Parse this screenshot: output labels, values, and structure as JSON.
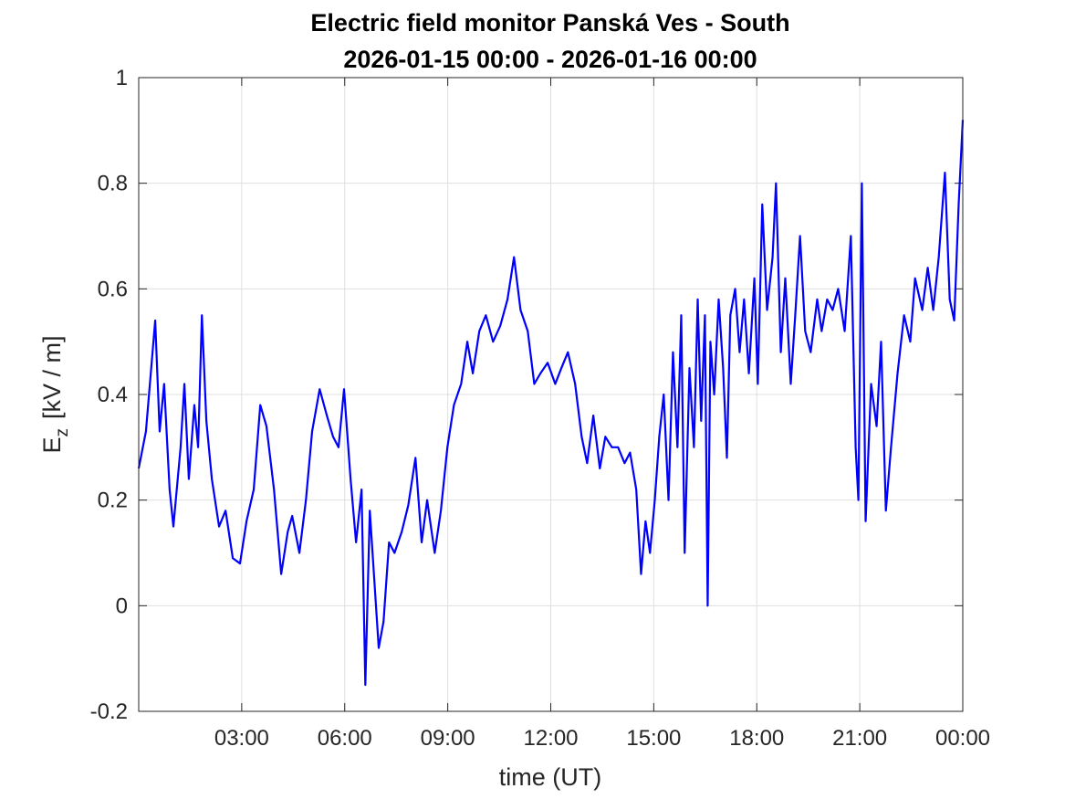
{
  "chart_data": {
    "type": "line",
    "title": "Electric field monitor Panská Ves - South",
    "subtitle": "2026-01-15 00:00 - 2026-01-16 00:00",
    "xlabel": "time (UT)",
    "ylabel": {
      "symbol": "E",
      "subscript": "z",
      "unit": "[kV / m]"
    },
    "xlim": [
      0,
      24
    ],
    "xticks": [
      {
        "value": 3,
        "label": "03:00"
      },
      {
        "value": 6,
        "label": "06:00"
      },
      {
        "value": 9,
        "label": "09:00"
      },
      {
        "value": 12,
        "label": "12:00"
      },
      {
        "value": 15,
        "label": "15:00"
      },
      {
        "value": 18,
        "label": "18:00"
      },
      {
        "value": 21,
        "label": "21:00"
      },
      {
        "value": 24,
        "label": "00:00"
      }
    ],
    "ylim": [
      -0.2,
      1
    ],
    "yticks": [
      -0.2,
      0,
      0.2,
      0.4,
      0.6,
      0.8,
      1
    ],
    "grid": true,
    "color": "#0000ff",
    "x": [
      0,
      0.21,
      0.48,
      0.61,
      0.74,
      0.9,
      1.01,
      1.22,
      1.33,
      1.46,
      1.62,
      1.73,
      1.84,
      1.97,
      2.13,
      2.34,
      2.53,
      2.74,
      2.95,
      3.14,
      3.35,
      3.54,
      3.72,
      3.94,
      4.15,
      4.34,
      4.47,
      4.68,
      4.87,
      5.05,
      5.27,
      5.48,
      5.66,
      5.82,
      5.98,
      6.17,
      6.33,
      6.49,
      6.6,
      6.73,
      6.86,
      6.99,
      7.13,
      7.29,
      7.45,
      7.66,
      7.85,
      8.06,
      8.24,
      8.4,
      8.62,
      8.8,
      8.99,
      9.18,
      9.39,
      9.57,
      9.73,
      9.92,
      10.11,
      10.32,
      10.53,
      10.74,
      10.93,
      11.12,
      11.33,
      11.52,
      11.7,
      11.91,
      12.13,
      12.31,
      12.5,
      12.71,
      12.9,
      13.06,
      13.24,
      13.43,
      13.59,
      13.78,
      13.96,
      14.15,
      14.31,
      14.49,
      14.63,
      14.76,
      14.89,
      15.03,
      15.16,
      15.29,
      15.43,
      15.56,
      15.69,
      15.8,
      15.9,
      16.04,
      16.17,
      16.28,
      16.38,
      16.49,
      16.57,
      16.65,
      16.76,
      16.89,
      17.02,
      17.13,
      17.23,
      17.37,
      17.5,
      17.63,
      17.77,
      17.93,
      18.03,
      18.16,
      18.3,
      18.46,
      18.56,
      18.7,
      18.83,
      18.99,
      19.12,
      19.26,
      19.41,
      19.57,
      19.76,
      19.89,
      20.05,
      20.21,
      20.37,
      20.56,
      20.74,
      20.88,
      20.96,
      21.06,
      21.17,
      21.33,
      21.49,
      21.62,
      21.76,
      21.91,
      22.1,
      22.29,
      22.47,
      22.61,
      22.82,
      22.98,
      23.14,
      23.3,
      23.48,
      23.62,
      23.75,
      23.88,
      24
    ],
    "values": [
      0.26,
      0.33,
      0.54,
      0.33,
      0.42,
      0.22,
      0.15,
      0.3,
      0.42,
      0.24,
      0.38,
      0.3,
      0.55,
      0.35,
      0.24,
      0.15,
      0.18,
      0.09,
      0.08,
      0.16,
      0.22,
      0.38,
      0.34,
      0.22,
      0.06,
      0.14,
      0.17,
      0.1,
      0.2,
      0.33,
      0.41,
      0.36,
      0.32,
      0.3,
      0.41,
      0.24,
      0.12,
      0.22,
      -0.15,
      0.18,
      0.05,
      -0.08,
      -0.03,
      0.12,
      0.1,
      0.14,
      0.19,
      0.28,
      0.12,
      0.2,
      0.1,
      0.18,
      0.3,
      0.38,
      0.42,
      0.5,
      0.44,
      0.52,
      0.55,
      0.5,
      0.53,
      0.58,
      0.66,
      0.56,
      0.52,
      0.42,
      0.44,
      0.46,
      0.42,
      0.45,
      0.48,
      0.42,
      0.32,
      0.27,
      0.36,
      0.26,
      0.32,
      0.3,
      0.3,
      0.27,
      0.29,
      0.22,
      0.06,
      0.16,
      0.1,
      0.2,
      0.32,
      0.4,
      0.2,
      0.48,
      0.3,
      0.55,
      0.1,
      0.45,
      0.3,
      0.58,
      0.35,
      0.55,
      0,
      0.5,
      0.4,
      0.58,
      0.45,
      0.28,
      0.55,
      0.6,
      0.48,
      0.58,
      0.44,
      0.62,
      0.42,
      0.76,
      0.56,
      0.66,
      0.8,
      0.48,
      0.62,
      0.42,
      0.55,
      0.7,
      0.52,
      0.48,
      0.58,
      0.52,
      0.58,
      0.56,
      0.6,
      0.52,
      0.7,
      0.3,
      0.2,
      0.8,
      0.16,
      0.42,
      0.34,
      0.5,
      0.18,
      0.3,
      0.44,
      0.55,
      0.5,
      0.62,
      0.56,
      0.64,
      0.56,
      0.66,
      0.82,
      0.58,
      0.54,
      0.76,
      0.92
    ]
  }
}
